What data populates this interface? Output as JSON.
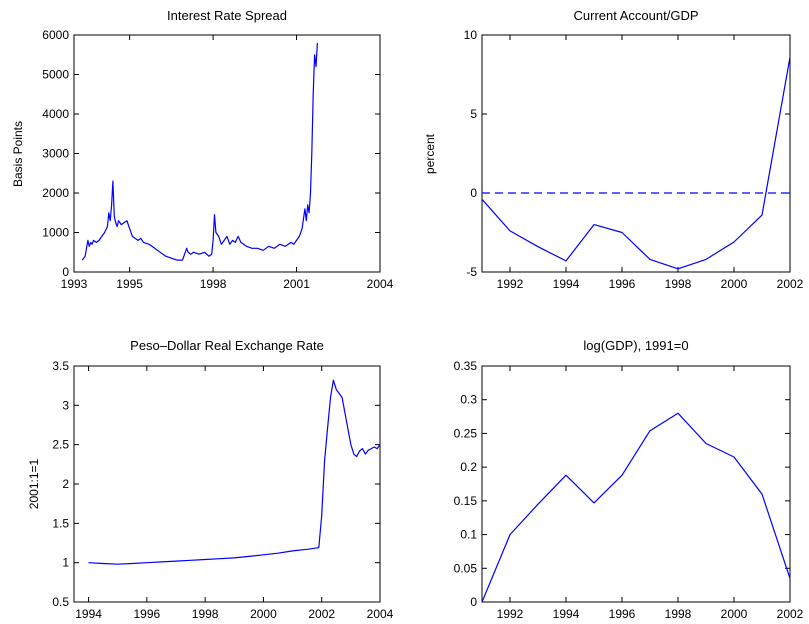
{
  "chart_data": [
    {
      "id": "spread",
      "type": "line",
      "title": "Interest Rate Spread",
      "xlabel": "",
      "ylabel": "Basis Points",
      "xlim": [
        1993,
        2004
      ],
      "ylim": [
        0,
        6000
      ],
      "xtick_values": [
        1993,
        1995,
        1998,
        2001,
        2004
      ],
      "xtick_labels": [
        "1993",
        "1995",
        "1998",
        "2001",
        "2004"
      ],
      "yticks": [
        0,
        1000,
        2000,
        3000,
        4000,
        5000,
        6000
      ],
      "series": [
        {
          "color": "#0000ff",
          "dashed": false,
          "x": [
            1993.3,
            1993.4,
            1993.45,
            1993.5,
            1993.55,
            1993.6,
            1993.65,
            1993.7,
            1993.8,
            1993.9,
            1994.0,
            1994.1,
            1994.2,
            1994.25,
            1994.3,
            1994.35,
            1994.4,
            1994.45,
            1994.5,
            1994.55,
            1994.6,
            1994.7,
            1994.8,
            1994.9,
            1995.0,
            1995.1,
            1995.2,
            1995.3,
            1995.4,
            1995.5,
            1995.7,
            1995.9,
            1996.1,
            1996.3,
            1996.5,
            1996.7,
            1996.9,
            1997.05,
            1997.1,
            1997.2,
            1997.3,
            1997.5,
            1997.7,
            1997.85,
            1997.95,
            1998.0,
            1998.05,
            1998.1,
            1998.2,
            1998.3,
            1998.4,
            1998.5,
            1998.6,
            1998.7,
            1998.8,
            1998.9,
            1999.0,
            1999.2,
            1999.4,
            1999.6,
            1999.8,
            2000.0,
            2000.2,
            2000.4,
            2000.6,
            2000.8,
            2000.9,
            2001.0,
            2001.1,
            2001.2,
            2001.3,
            2001.35,
            2001.4,
            2001.45,
            2001.5,
            2001.55,
            2001.6,
            2001.65,
            2001.7,
            2001.75
          ],
          "y": [
            300,
            400,
            600,
            800,
            650,
            750,
            700,
            800,
            750,
            800,
            900,
            1000,
            1150,
            1500,
            1300,
            1700,
            2300,
            1400,
            1250,
            1150,
            1300,
            1200,
            1250,
            1300,
            1100,
            900,
            850,
            800,
            850,
            750,
            700,
            600,
            500,
            400,
            350,
            300,
            300,
            600,
            500,
            450,
            500,
            450,
            500,
            400,
            450,
            800,
            1450,
            1000,
            900,
            700,
            800,
            900,
            700,
            800,
            750,
            900,
            750,
            650,
            600,
            600,
            550,
            650,
            600,
            700,
            650,
            750,
            700,
            800,
            900,
            1100,
            1600,
            1300,
            1700,
            1500,
            2000,
            3000,
            4500,
            5500,
            5200,
            5800
          ]
        }
      ]
    },
    {
      "id": "ca",
      "type": "line",
      "title": "Current Account/GDP",
      "xlabel": "",
      "ylabel": "percent",
      "xlim": [
        1991,
        2002
      ],
      "ylim": [
        -5,
        10
      ],
      "xtick_values": [
        1992,
        1994,
        1996,
        1998,
        2000,
        2002
      ],
      "xtick_labels": [
        "1992",
        "1994",
        "1996",
        "1998",
        "2000",
        "2002"
      ],
      "yticks": [
        -5,
        0,
        5,
        10
      ],
      "series": [
        {
          "color": "#0000ff",
          "dashed": false,
          "x": [
            1991,
            1992,
            1993,
            1994,
            1995,
            1996,
            1997,
            1998,
            1999,
            2000,
            2001,
            2002
          ],
          "y": [
            -0.4,
            -2.4,
            -3.4,
            -4.3,
            -2.0,
            -2.5,
            -4.2,
            -4.8,
            -4.2,
            -3.1,
            -1.4,
            8.6
          ]
        },
        {
          "color": "#0000ff",
          "dashed": true,
          "x": [
            1991,
            2002
          ],
          "y": [
            0,
            0
          ]
        }
      ]
    },
    {
      "id": "rer",
      "type": "line",
      "title": "Peso–Dollar Real Exchange Rate",
      "xlabel": "",
      "ylabel": "2001:1=1",
      "xlim": [
        1993.5,
        2004
      ],
      "ylim": [
        0.5,
        3.5
      ],
      "xtick_values": [
        1994,
        1996,
        1998,
        2000,
        2002,
        2004
      ],
      "xtick_labels": [
        "1994",
        "1996",
        "1998",
        "2000",
        "2002",
        "2004"
      ],
      "yticks": [
        0.5,
        1,
        1.5,
        2,
        2.5,
        3,
        3.5
      ],
      "series": [
        {
          "color": "#0000ff",
          "dashed": false,
          "x": [
            1994.0,
            1994.5,
            1995.0,
            1995.5,
            1996.0,
            1996.5,
            1997.0,
            1997.5,
            1998.0,
            1998.5,
            1999.0,
            1999.5,
            2000.0,
            2000.5,
            2001.0,
            2001.5,
            2001.9,
            2002.0,
            2002.1,
            2002.2,
            2002.3,
            2002.4,
            2002.5,
            2002.6,
            2002.7,
            2002.8,
            2002.9,
            2003.0,
            2003.1,
            2003.2,
            2003.3,
            2003.4,
            2003.5,
            2003.6,
            2003.7,
            2003.8,
            2003.9,
            2004.0
          ],
          "y": [
            1.0,
            0.99,
            0.98,
            0.99,
            1.0,
            1.01,
            1.02,
            1.03,
            1.04,
            1.05,
            1.06,
            1.08,
            1.1,
            1.12,
            1.15,
            1.17,
            1.19,
            1.6,
            2.3,
            2.7,
            3.1,
            3.32,
            3.2,
            3.15,
            3.1,
            2.9,
            2.7,
            2.5,
            2.38,
            2.35,
            2.42,
            2.45,
            2.38,
            2.43,
            2.45,
            2.47,
            2.45,
            2.5
          ]
        }
      ]
    },
    {
      "id": "gdp",
      "type": "line",
      "title": "log(GDP), 1991=0",
      "xlabel": "",
      "ylabel": "",
      "xlim": [
        1991,
        2002
      ],
      "ylim": [
        0,
        0.35
      ],
      "xtick_values": [
        1992,
        1994,
        1996,
        1998,
        2000,
        2002
      ],
      "xtick_labels": [
        "1992",
        "1994",
        "1996",
        "1998",
        "2000",
        "2002"
      ],
      "yticks": [
        0,
        0.05,
        0.1,
        0.15,
        0.2,
        0.25,
        0.3,
        0.35
      ],
      "series": [
        {
          "color": "#0000ff",
          "dashed": false,
          "x": [
            1991,
            1992,
            1993,
            1994,
            1995,
            1996,
            1997,
            1998,
            1999,
            2000,
            2001,
            2002
          ],
          "y": [
            0,
            0.1,
            0.145,
            0.188,
            0.147,
            0.188,
            0.254,
            0.28,
            0.235,
            0.215,
            0.16,
            0.035
          ]
        }
      ]
    }
  ]
}
